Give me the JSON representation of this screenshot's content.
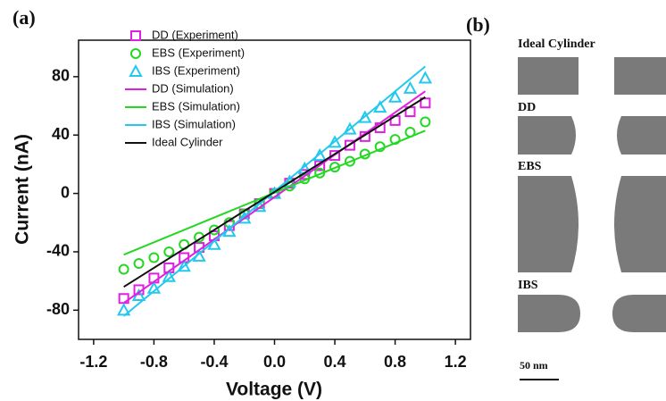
{
  "chart_data": {
    "type": "scatter",
    "panel_label": "(a)",
    "x_label": "Voltage (V)",
    "y_label": "Current (nA)",
    "xlim": [
      -1.3,
      1.3
    ],
    "ylim": [
      -100,
      105
    ],
    "xticks": [
      -1.2,
      -0.8,
      -0.4,
      {
        "value": 0,
        "label": "0.0"
      },
      0.4,
      0.8,
      1.2
    ],
    "yticks": [
      -80,
      -40,
      0,
      40,
      80
    ],
    "series": [
      {
        "name": "DD (Experiment)",
        "color": "#e020e0",
        "marker": "square",
        "x": [
          -1.0,
          -0.9,
          -0.8,
          -0.7,
          -0.6,
          -0.5,
          -0.4,
          -0.3,
          -0.2,
          -0.1,
          0,
          0.1,
          0.2,
          0.3,
          0.4,
          0.5,
          0.6,
          0.7,
          0.8,
          0.9,
          1.0
        ],
        "values": [
          -72,
          -66,
          -58,
          -51,
          -44,
          -37,
          -29,
          -22,
          -14,
          -7,
          0,
          7,
          13,
          19,
          26,
          33,
          39,
          45,
          50,
          56,
          62
        ]
      },
      {
        "name": "EBS (Experiment)",
        "color": "#22d822",
        "marker": "circle",
        "x": [
          -1.0,
          -0.9,
          -0.8,
          -0.7,
          -0.6,
          -0.5,
          -0.4,
          -0.3,
          -0.2,
          -0.1,
          0,
          0.1,
          0.2,
          0.3,
          0.4,
          0.5,
          0.6,
          0.7,
          0.8,
          0.9,
          1.0
        ],
        "values": [
          -52,
          -48,
          -44,
          -40,
          -35,
          -30,
          -25,
          -20,
          -14,
          -7,
          0,
          5,
          10,
          14,
          18,
          22,
          27,
          32,
          37,
          42,
          49
        ]
      },
      {
        "name": "IBS (Experiment)",
        "color": "#22c8ee",
        "marker": "triangle",
        "x": [
          -1.0,
          -0.9,
          -0.8,
          -0.7,
          -0.6,
          -0.5,
          -0.4,
          -0.3,
          -0.2,
          -0.1,
          0,
          0.1,
          0.2,
          0.3,
          0.4,
          0.5,
          0.6,
          0.7,
          0.8,
          0.9,
          1.0
        ],
        "values": [
          -80,
          -70,
          -65,
          -57,
          -50,
          -43,
          -35,
          -26,
          -17,
          -9,
          0,
          8,
          17,
          26,
          35,
          44,
          52,
          59,
          66,
          72,
          79
        ]
      },
      {
        "name": "DD (Simulation)",
        "color": "#e020e0",
        "marker": "line",
        "x": [
          -1.0,
          1.0
        ],
        "values": [
          -75,
          70
        ]
      },
      {
        "name": "EBS (Simulation)",
        "color": "#22d822",
        "marker": "line",
        "x": [
          -1.0,
          1.0
        ],
        "values": [
          -42,
          43
        ]
      },
      {
        "name": "IBS (Simulation)",
        "color": "#22c8ee",
        "marker": "line",
        "x": [
          -1.0,
          1.0
        ],
        "values": [
          -84,
          87
        ]
      },
      {
        "name": "Ideal Cylinder",
        "color": "#111111",
        "marker": "line",
        "x": [
          -1.0,
          1.0
        ],
        "values": [
          -64,
          66
        ]
      }
    ]
  },
  "panel_b": {
    "label": "(b)",
    "shapes": [
      "Ideal Cylinder",
      "DD",
      "EBS",
      "IBS"
    ],
    "scale_bar": "50 nm"
  }
}
